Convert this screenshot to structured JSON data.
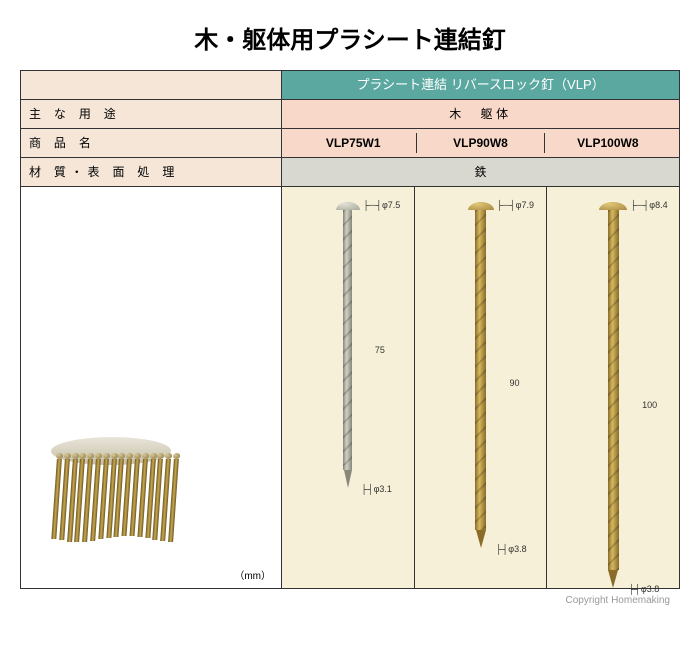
{
  "title": "木・躯体用プラシート連結釘",
  "leftHeaders": {
    "use": "主 な 用 途",
    "product": "商 品 名",
    "material": "材 質・表 面 処 理"
  },
  "topHeader": "プラシート連結 リバースロック釘（VLP）",
  "useValue": "木　躯体",
  "materialValue": "鉄",
  "products": [
    "VLP75W1",
    "VLP90W8",
    "VLP100W8"
  ],
  "nails": [
    {
      "headDia": "φ7.5",
      "shaftDia": "φ3.1",
      "length": "75",
      "lengthPx": 260,
      "headPx": 24,
      "shaftPx": 9,
      "colorLight": "#d0d0c8",
      "colorDark": "#888878",
      "headLight": "#e0e0d8",
      "headDark": "#a8a898"
    },
    {
      "headDia": "φ7.9",
      "shaftDia": "φ3.8",
      "length": "90",
      "lengthPx": 320,
      "headPx": 26,
      "shaftPx": 11,
      "colorLight": "#d4b860",
      "colorDark": "#8a6c28",
      "headLight": "#e0c878",
      "headDark": "#a88840"
    },
    {
      "headDia": "φ8.4",
      "shaftDia": "φ3.8",
      "length": "100",
      "lengthPx": 360,
      "headPx": 28,
      "shaftPx": 11,
      "colorLight": "#d4b860",
      "colorDark": "#8a6c28",
      "headLight": "#e0c878",
      "headDark": "#a88840"
    }
  ],
  "unit": "（mm）",
  "copyright": "Copyright Homemaking",
  "coilNailCount": 16
}
